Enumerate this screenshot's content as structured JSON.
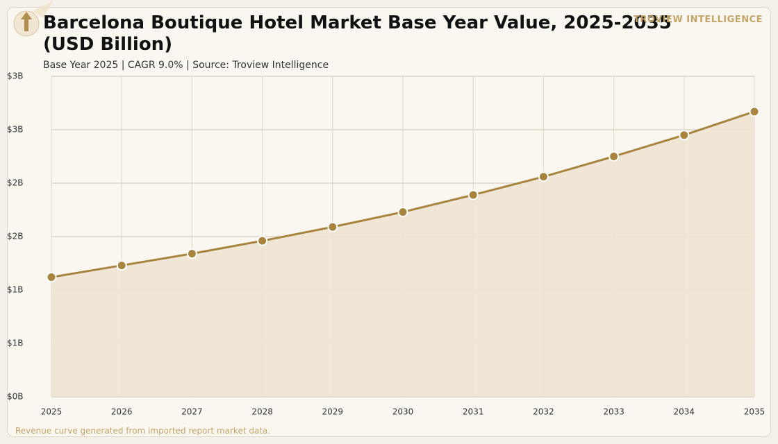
{
  "chart_data": {
    "type": "line",
    "title": "Barcelona Boutique Hotel Market Base Year Value, 2025-2035 (USD Billion)",
    "subtitle": "Base Year 2025 | CAGR 9.0% | Source: Troview Intelligence",
    "brand": "TROVIEW INTELLIGENCE",
    "note": "Revenue curve generated from imported report market data.",
    "x": [
      2025,
      2026,
      2027,
      2028,
      2029,
      2030,
      2031,
      2032,
      2033,
      2034,
      2035
    ],
    "values": [
      1.12,
      1.23,
      1.34,
      1.46,
      1.59,
      1.73,
      1.89,
      2.06,
      2.25,
      2.45,
      2.67
    ],
    "color": "#a8843f",
    "area_color": "#ede3d1",
    "grid": true,
    "xlim": [
      2025,
      2035
    ],
    "xticks": [
      2025,
      2026,
      2027,
      2028,
      2029,
      2030,
      2031,
      2032,
      2033,
      2034,
      2035
    ],
    "ylim": [
      0,
      3
    ],
    "yticks": [
      {
        "value": 0,
        "label": "$0B"
      },
      {
        "value": 0.5,
        "label": "$1B"
      },
      {
        "value": 1,
        "label": "$1B"
      },
      {
        "value": 1.5,
        "label": "$2B"
      },
      {
        "value": 2,
        "label": "$2B"
      },
      {
        "value": 2.5,
        "label": "$3B"
      },
      {
        "value": 3,
        "label": "$3B"
      }
    ]
  }
}
